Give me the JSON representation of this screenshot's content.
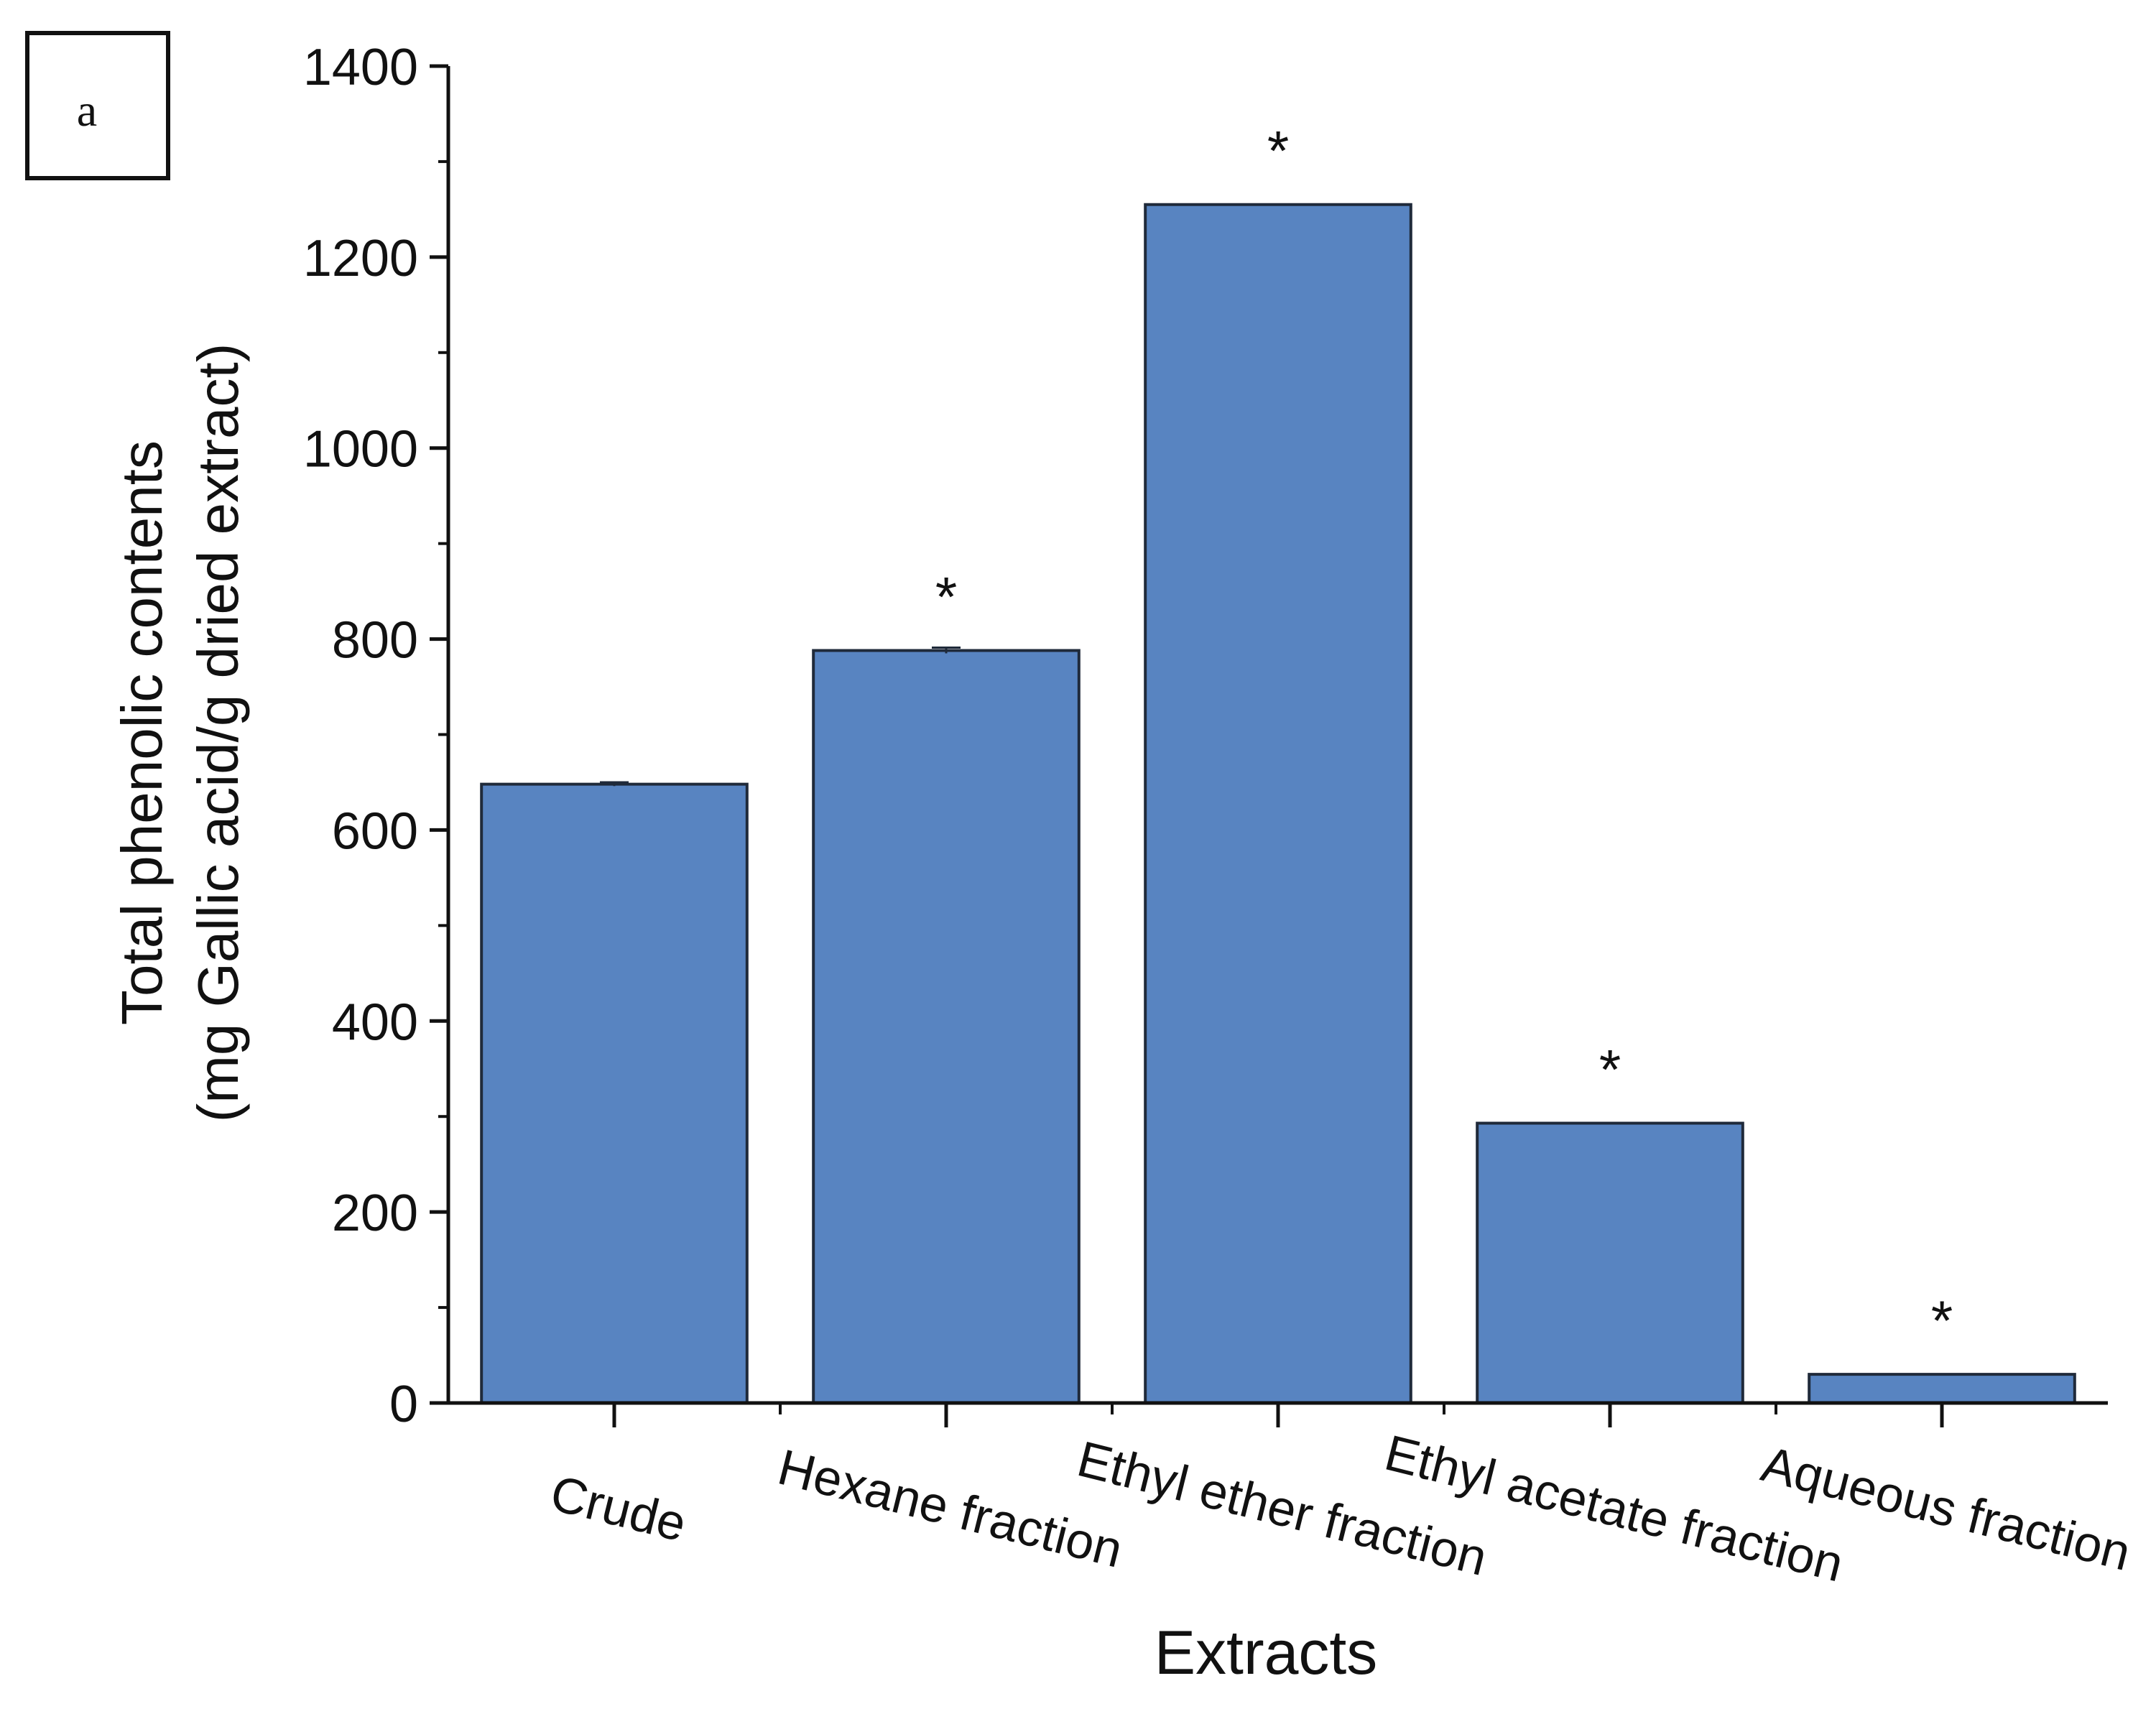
{
  "panel_label": "a",
  "colors": {
    "bar_fill": "#5884c1",
    "bar_stroke": "#1f2a3a",
    "axis": "#111111"
  },
  "chart_data": {
    "type": "bar",
    "title": "",
    "xlabel": "Extracts",
    "ylabel_line1": "Total phenolic contents",
    "ylabel_line2": "(mg Gallic acid/g dried extract)",
    "categories": [
      "Crude",
      "Hexane fraction",
      "Ethyl ether fraction",
      "Ethyl acetate fraction",
      "Aqueous fraction"
    ],
    "values": [
      648,
      788,
      1255,
      293,
      30
    ],
    "errors": [
      2,
      3,
      0,
      0,
      0
    ],
    "significance": [
      "",
      "*",
      "*",
      "*",
      "*"
    ],
    "ylim": [
      0,
      1400
    ],
    "yticks": [
      0,
      200,
      400,
      600,
      800,
      1000,
      1200,
      1400
    ],
    "grid": false,
    "legend": "none"
  }
}
